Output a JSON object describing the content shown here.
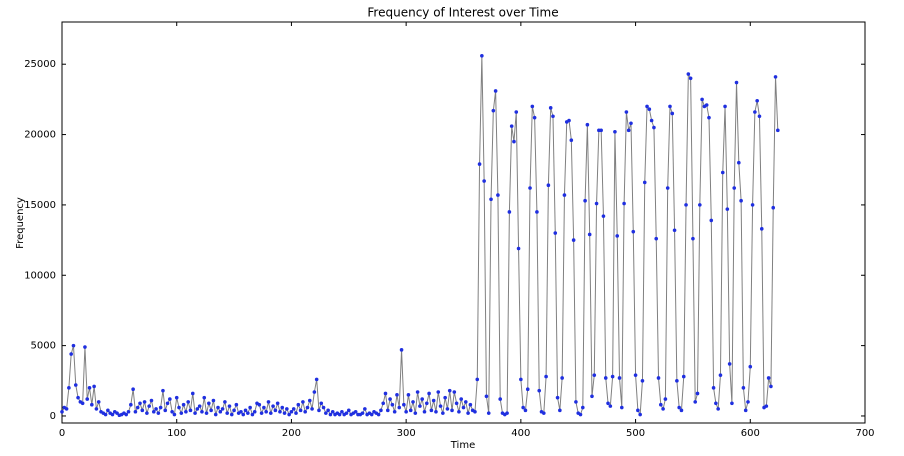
{
  "chart_data": {
    "type": "line",
    "title": "Frequency of Interest over Time",
    "x_label": "Time",
    "y_label": "Frequency",
    "xlim": [
      0,
      700
    ],
    "xticks": [
      0,
      100,
      200,
      300,
      400,
      500,
      600,
      700
    ],
    "ylim": [
      -500,
      28000
    ],
    "yticks": [
      0,
      5000,
      10000,
      15000,
      20000,
      25000
    ],
    "line_color": "#808080",
    "marker_color": "#1f2fe0",
    "x": [
      0,
      2,
      4,
      6,
      8,
      10,
      12,
      14,
      16,
      18,
      20,
      22,
      24,
      26,
      28,
      30,
      32,
      34,
      36,
      38,
      40,
      42,
      44,
      46,
      48,
      50,
      52,
      54,
      56,
      58,
      60,
      62,
      64,
      66,
      68,
      70,
      72,
      74,
      76,
      78,
      80,
      82,
      84,
      86,
      88,
      90,
      92,
      94,
      96,
      98,
      100,
      102,
      104,
      106,
      108,
      110,
      112,
      114,
      116,
      118,
      120,
      122,
      124,
      126,
      128,
      130,
      132,
      134,
      136,
      138,
      140,
      142,
      144,
      146,
      148,
      150,
      152,
      154,
      156,
      158,
      160,
      162,
      164,
      166,
      168,
      170,
      172,
      174,
      176,
      178,
      180,
      182,
      184,
      186,
      188,
      190,
      192,
      194,
      196,
      198,
      200,
      202,
      204,
      206,
      208,
      210,
      212,
      214,
      216,
      218,
      220,
      222,
      224,
      226,
      228,
      230,
      232,
      234,
      236,
      238,
      240,
      242,
      244,
      246,
      248,
      250,
      252,
      254,
      256,
      258,
      260,
      262,
      264,
      266,
      268,
      270,
      272,
      274,
      276,
      278,
      280,
      282,
      284,
      286,
      288,
      290,
      292,
      294,
      296,
      298,
      300,
      302,
      304,
      306,
      308,
      310,
      312,
      314,
      316,
      318,
      320,
      322,
      324,
      326,
      328,
      330,
      332,
      334,
      336,
      338,
      340,
      342,
      344,
      346,
      348,
      350,
      352,
      354,
      356,
      358,
      360,
      362,
      364,
      366,
      368,
      370,
      372,
      374,
      376,
      378,
      380,
      382,
      384,
      386,
      388,
      390,
      392,
      394,
      396,
      398,
      400,
      402,
      404,
      406,
      408,
      410,
      412,
      414,
      416,
      418,
      420,
      422,
      424,
      426,
      428,
      430,
      432,
      434,
      436,
      438,
      440,
      442,
      444,
      446,
      448,
      450,
      452,
      454,
      456,
      458,
      460,
      462,
      464,
      466,
      468,
      470,
      472,
      474,
      476,
      478,
      480,
      482,
      484,
      486,
      488,
      490,
      492,
      494,
      496,
      498,
      500,
      502,
      504,
      506,
      508,
      510,
      512,
      514,
      516,
      518,
      520,
      522,
      524,
      526,
      528,
      530,
      532,
      534,
      536,
      538,
      540,
      542,
      544,
      546,
      548,
      550,
      552,
      554,
      556,
      558,
      560,
      562,
      564,
      566,
      568,
      570,
      572,
      574,
      576,
      578,
      580,
      582,
      584,
      586,
      588,
      590,
      592,
      594,
      596,
      598,
      600,
      602,
      604,
      606,
      608,
      610,
      612,
      614,
      616,
      618,
      620,
      622,
      624
    ],
    "series": [
      {
        "values": [
          300,
          600,
          500,
          2000,
          4400,
          5000,
          2200,
          1300,
          1000,
          900,
          4900,
          1200,
          2000,
          800,
          2100,
          500,
          1000,
          300,
          200,
          100,
          400,
          200,
          100,
          300,
          200,
          50,
          100,
          200,
          100,
          300,
          800,
          1900,
          300,
          600,
          900,
          400,
          1000,
          200,
          700,
          1100,
          300,
          500,
          200,
          600,
          1800,
          400,
          900,
          1200,
          300,
          100,
          1300,
          600,
          200,
          800,
          300,
          1000,
          400,
          1600,
          200,
          500,
          700,
          300,
          1300,
          200,
          900,
          400,
          1100,
          100,
          600,
          300,
          500,
          1000,
          200,
          700,
          100,
          400,
          800,
          200,
          300,
          100,
          400,
          200,
          600,
          100,
          300,
          900,
          800,
          200,
          600,
          300,
          1000,
          200,
          700,
          400,
          900,
          300,
          600,
          200,
          500,
          100,
          300,
          500,
          200,
          800,
          400,
          1000,
          300,
          600,
          1100,
          500,
          1700,
          2600,
          400,
          900,
          600,
          200,
          400,
          100,
          300,
          100,
          200,
          100,
          300,
          100,
          200,
          400,
          100,
          200,
          300,
          100,
          100,
          200,
          500,
          100,
          200,
          100,
          300,
          200,
          100,
          400,
          900,
          1600,
          400,
          1200,
          800,
          300,
          1500,
          600,
          4700,
          800,
          300,
          1500,
          400,
          1000,
          200,
          1700,
          700,
          1200,
          300,
          900,
          1600,
          400,
          1100,
          300,
          1700,
          700,
          200,
          1300,
          500,
          1800,
          400,
          1700,
          900,
          300,
          1200,
          600,
          1000,
          200,
          800,
          400,
          300,
          2600,
          17900,
          25600,
          16700,
          1400,
          200,
          15400,
          21700,
          23100,
          15700,
          1200,
          200,
          100,
          200,
          14500,
          20600,
          19500,
          21600,
          11900,
          2600,
          600,
          400,
          1900,
          16200,
          22000,
          21200,
          14500,
          1800,
          300,
          200,
          2800,
          16400,
          21900,
          21300,
          13000,
          1300,
          400,
          2700,
          15700,
          20900,
          21000,
          19600,
          12500,
          1000,
          200,
          100,
          600,
          15300,
          20700,
          12900,
          1400,
          2900,
          15100,
          20300,
          20300,
          14200,
          2700,
          900,
          700,
          2800,
          20200,
          12800,
          2700,
          600,
          15100,
          21600,
          20300,
          20800,
          13100,
          2900,
          400,
          100,
          2500,
          16600,
          22000,
          21800,
          21000,
          20500,
          12600,
          2700,
          800,
          500,
          1200,
          16200,
          22000,
          21500,
          13200,
          2500,
          600,
          400,
          2800,
          15000,
          24300,
          24000,
          12600,
          1000,
          1600,
          15000,
          22500,
          22000,
          22100,
          21200,
          13900,
          2000,
          900,
          500,
          2900,
          17300,
          22000,
          14700,
          3700,
          900,
          16200,
          23700,
          18000,
          15300,
          2000,
          400,
          1000,
          3500,
          15000,
          21600,
          22400,
          21300,
          13300,
          600,
          700,
          2700,
          2100,
          14800,
          24100,
          20300
        ]
      }
    ]
  }
}
